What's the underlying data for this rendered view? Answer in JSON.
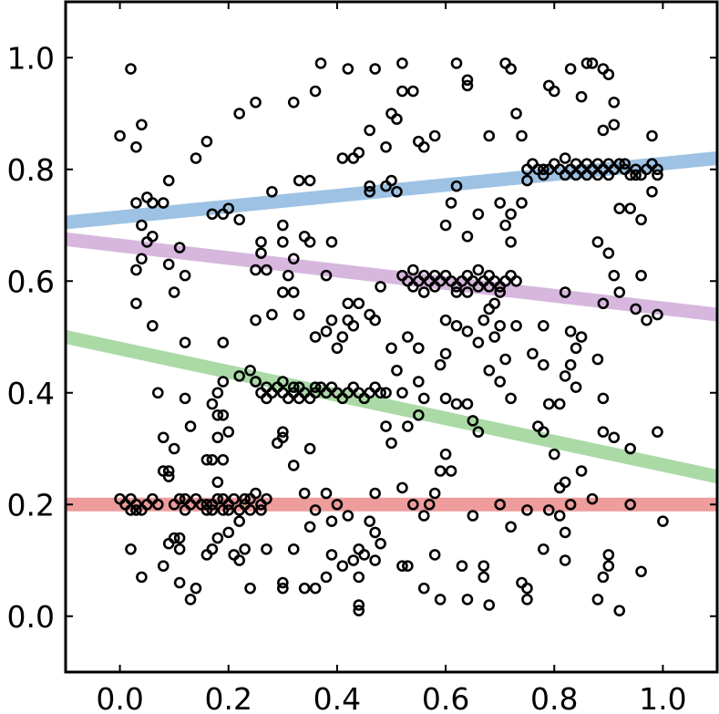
{
  "chart_data": {
    "type": "scatter",
    "title": "",
    "xlabel": "",
    "ylabel": "",
    "xlim": [
      -0.1,
      1.1
    ],
    "ylim": [
      -0.1,
      1.1
    ],
    "xticks": [
      "0.0",
      "0.2",
      "0.4",
      "0.6",
      "0.8",
      "1.0"
    ],
    "yticks": [
      "0.0",
      "0.2",
      "0.4",
      "0.6",
      "0.8",
      "1.0"
    ],
    "grid": false,
    "legend": "none",
    "fit_lines": [
      {
        "color": "#4f8fcc",
        "x": [
          -0.1,
          1.1
        ],
        "y": [
          0.705,
          0.82
        ]
      },
      {
        "color": "#b77cc2",
        "x": [
          -0.1,
          1.1
        ],
        "y": [
          0.675,
          0.54
        ]
      },
      {
        "color": "#66bb5f",
        "x": [
          -0.1,
          1.1
        ],
        "y": [
          0.5,
          0.25
        ]
      },
      {
        "color": "#e04a4a",
        "x": [
          -0.1,
          1.1
        ],
        "y": [
          0.2,
          0.2
        ]
      }
    ],
    "points": [
      [
        0.02,
        0.98
      ],
      [
        0.0,
        0.86
      ],
      [
        0.03,
        0.84
      ],
      [
        0.04,
        0.88
      ],
      [
        0.03,
        0.74
      ],
      [
        0.05,
        0.75
      ],
      [
        0.06,
        0.74
      ],
      [
        0.04,
        0.7
      ],
      [
        0.05,
        0.67
      ],
      [
        0.06,
        0.68
      ],
      [
        0.04,
        0.64
      ],
      [
        0.03,
        0.62
      ],
      [
        0.03,
        0.56
      ],
      [
        0.06,
        0.52
      ],
      [
        0.09,
        0.78
      ],
      [
        0.08,
        0.74
      ],
      [
        0.09,
        0.63
      ],
      [
        0.1,
        0.58
      ],
      [
        0.11,
        0.66
      ],
      [
        0.12,
        0.61
      ],
      [
        0.12,
        0.49
      ],
      [
        0.14,
        0.82
      ],
      [
        0.16,
        0.85
      ],
      [
        0.17,
        0.72
      ],
      [
        0.19,
        0.72
      ],
      [
        0.2,
        0.73
      ],
      [
        0.22,
        0.71
      ],
      [
        0.22,
        0.9
      ],
      [
        0.25,
        0.92
      ],
      [
        0.26,
        0.67
      ],
      [
        0.26,
        0.65
      ],
      [
        0.25,
        0.62
      ],
      [
        0.27,
        0.62
      ],
      [
        0.28,
        0.76
      ],
      [
        0.3,
        0.67
      ],
      [
        0.3,
        0.7
      ],
      [
        0.32,
        0.92
      ],
      [
        0.33,
        0.78
      ],
      [
        0.35,
        0.78
      ],
      [
        0.36,
        0.94
      ],
      [
        0.37,
        0.99
      ],
      [
        0.34,
        0.68
      ],
      [
        0.35,
        0.67
      ],
      [
        0.32,
        0.64
      ],
      [
        0.38,
        0.61
      ],
      [
        0.39,
        0.67
      ],
      [
        0.41,
        0.82
      ],
      [
        0.42,
        0.98
      ],
      [
        0.43,
        0.82
      ],
      [
        0.44,
        0.83
      ],
      [
        0.46,
        0.87
      ],
      [
        0.47,
        0.98
      ],
      [
        0.49,
        0.84
      ],
      [
        0.46,
        0.77
      ],
      [
        0.46,
        0.76
      ],
      [
        0.49,
        0.77
      ],
      [
        0.5,
        0.78
      ],
      [
        0.51,
        0.76
      ],
      [
        0.5,
        0.9
      ],
      [
        0.51,
        0.89
      ],
      [
        0.52,
        0.99
      ],
      [
        0.52,
        0.94
      ],
      [
        0.54,
        0.94
      ],
      [
        0.55,
        0.85
      ],
      [
        0.56,
        0.84
      ],
      [
        0.58,
        0.86
      ],
      [
        0.62,
        0.99
      ],
      [
        0.64,
        0.96
      ],
      [
        0.64,
        0.95
      ],
      [
        0.62,
        0.77
      ],
      [
        0.61,
        0.74
      ],
      [
        0.6,
        0.7
      ],
      [
        0.64,
        0.68
      ],
      [
        0.66,
        0.72
      ],
      [
        0.68,
        0.86
      ],
      [
        0.7,
        0.74
      ],
      [
        0.71,
        0.7
      ],
      [
        0.72,
        0.72
      ],
      [
        0.72,
        0.67
      ],
      [
        0.71,
        0.99
      ],
      [
        0.72,
        0.98
      ],
      [
        0.73,
        0.9
      ],
      [
        0.74,
        0.86
      ],
      [
        0.75,
        0.78
      ],
      [
        0.74,
        0.74
      ],
      [
        0.78,
        0.8
      ],
      [
        0.79,
        0.95
      ],
      [
        0.8,
        0.94
      ],
      [
        0.83,
        0.98
      ],
      [
        0.85,
        0.93
      ],
      [
        0.86,
        0.99
      ],
      [
        0.87,
        0.99
      ],
      [
        0.89,
        0.98
      ],
      [
        0.9,
        0.97
      ],
      [
        0.91,
        0.92
      ],
      [
        0.89,
        0.87
      ],
      [
        0.91,
        0.88
      ],
      [
        0.93,
        0.81
      ],
      [
        0.95,
        0.79
      ],
      [
        0.98,
        0.86
      ],
      [
        0.99,
        0.79
      ],
      [
        0.98,
        0.76
      ],
      [
        0.96,
        0.71
      ],
      [
        0.94,
        0.73
      ],
      [
        0.92,
        0.73
      ],
      [
        0.88,
        0.67
      ],
      [
        0.91,
        0.61
      ],
      [
        0.9,
        0.65
      ],
      [
        0.92,
        0.58
      ],
      [
        0.95,
        0.55
      ],
      [
        0.96,
        0.61
      ],
      [
        0.99,
        0.54
      ],
      [
        0.97,
        0.53
      ],
      [
        0.89,
        0.56
      ],
      [
        0.85,
        0.5
      ],
      [
        0.83,
        0.51
      ],
      [
        0.82,
        0.58
      ],
      [
        0.83,
        0.45
      ],
      [
        0.84,
        0.48
      ],
      [
        0.88,
        0.46
      ],
      [
        0.89,
        0.39
      ],
      [
        0.89,
        0.33
      ],
      [
        0.91,
        0.32
      ],
      [
        0.94,
        0.3
      ],
      [
        0.99,
        0.33
      ],
      [
        0.85,
        0.26
      ],
      [
        0.82,
        0.24
      ],
      [
        0.81,
        0.23
      ],
      [
        0.8,
        0.29
      ],
      [
        0.77,
        0.34
      ],
      [
        0.78,
        0.33
      ],
      [
        0.79,
        0.38
      ],
      [
        0.81,
        0.38
      ],
      [
        0.82,
        0.43
      ],
      [
        0.84,
        0.41
      ],
      [
        0.78,
        0.45
      ],
      [
        0.78,
        0.52
      ],
      [
        0.76,
        0.47
      ],
      [
        0.73,
        0.52
      ],
      [
        0.72,
        0.39
      ],
      [
        0.71,
        0.46
      ],
      [
        0.7,
        0.42
      ],
      [
        0.7,
        0.52
      ],
      [
        0.69,
        0.56
      ],
      [
        0.68,
        0.55
      ],
      [
        0.67,
        0.53
      ],
      [
        0.66,
        0.49
      ],
      [
        0.64,
        0.51
      ],
      [
        0.62,
        0.52
      ],
      [
        0.6,
        0.53
      ],
      [
        0.59,
        0.45
      ],
      [
        0.6,
        0.47
      ],
      [
        0.6,
        0.39
      ],
      [
        0.62,
        0.38
      ],
      [
        0.64,
        0.38
      ],
      [
        0.65,
        0.35
      ],
      [
        0.66,
        0.33
      ],
      [
        0.68,
        0.44
      ],
      [
        0.69,
        0.5
      ],
      [
        0.61,
        0.26
      ],
      [
        0.6,
        0.29
      ],
      [
        0.59,
        0.26
      ],
      [
        0.58,
        0.22
      ],
      [
        0.57,
        0.2
      ],
      [
        0.56,
        0.18
      ],
      [
        0.54,
        0.2
      ],
      [
        0.52,
        0.23
      ],
      [
        0.5,
        0.31
      ],
      [
        0.49,
        0.34
      ],
      [
        0.5,
        0.48
      ],
      [
        0.51,
        0.44
      ],
      [
        0.52,
        0.4
      ],
      [
        0.53,
        0.5
      ],
      [
        0.55,
        0.48
      ],
      [
        0.55,
        0.42
      ],
      [
        0.56,
        0.39
      ],
      [
        0.55,
        0.36
      ],
      [
        0.53,
        0.34
      ],
      [
        0.47,
        0.22
      ],
      [
        0.46,
        0.17
      ],
      [
        0.47,
        0.15
      ],
      [
        0.48,
        0.13
      ],
      [
        0.47,
        0.1
      ],
      [
        0.45,
        0.11
      ],
      [
        0.44,
        0.12
      ],
      [
        0.43,
        0.1
      ],
      [
        0.44,
        0.07
      ],
      [
        0.42,
        0.18
      ],
      [
        0.4,
        0.2
      ],
      [
        0.39,
        0.17
      ],
      [
        0.38,
        0.22
      ],
      [
        0.36,
        0.19
      ],
      [
        0.35,
        0.16
      ],
      [
        0.34,
        0.22
      ],
      [
        0.32,
        0.27
      ],
      [
        0.3,
        0.32
      ],
      [
        0.29,
        0.31
      ],
      [
        0.3,
        0.33
      ],
      [
        0.35,
        0.3
      ],
      [
        0.36,
        0.5
      ],
      [
        0.38,
        0.51
      ],
      [
        0.39,
        0.53
      ],
      [
        0.42,
        0.53
      ],
      [
        0.44,
        0.56
      ],
      [
        0.46,
        0.54
      ],
      [
        0.47,
        0.53
      ],
      [
        0.48,
        0.59
      ],
      [
        0.43,
        0.52
      ],
      [
        0.42,
        0.56
      ],
      [
        0.41,
        0.5
      ],
      [
        0.4,
        0.48
      ],
      [
        0.33,
        0.54
      ],
      [
        0.32,
        0.58
      ],
      [
        0.31,
        0.61
      ],
      [
        0.3,
        0.58
      ],
      [
        0.28,
        0.54
      ],
      [
        0.25,
        0.53
      ],
      [
        0.24,
        0.44
      ],
      [
        0.25,
        0.42
      ],
      [
        0.22,
        0.43
      ],
      [
        0.19,
        0.49
      ],
      [
        0.19,
        0.42
      ],
      [
        0.18,
        0.4
      ],
      [
        0.17,
        0.38
      ],
      [
        0.18,
        0.36
      ],
      [
        0.19,
        0.36
      ],
      [
        0.18,
        0.32
      ],
      [
        0.2,
        0.33
      ],
      [
        0.19,
        0.28
      ],
      [
        0.17,
        0.28
      ],
      [
        0.16,
        0.28
      ],
      [
        0.18,
        0.24
      ],
      [
        0.19,
        0.21
      ],
      [
        0.13,
        0.34
      ],
      [
        0.12,
        0.39
      ],
      [
        0.1,
        0.3
      ],
      [
        0.08,
        0.32
      ],
      [
        0.07,
        0.4
      ],
      [
        0.08,
        0.26
      ],
      [
        0.09,
        0.26
      ],
      [
        0.09,
        0.25
      ],
      [
        0.02,
        0.12
      ],
      [
        0.04,
        0.07
      ],
      [
        0.08,
        0.09
      ],
      [
        0.09,
        0.13
      ],
      [
        0.1,
        0.14
      ],
      [
        0.11,
        0.14
      ],
      [
        0.11,
        0.12
      ],
      [
        0.11,
        0.06
      ],
      [
        0.13,
        0.03
      ],
      [
        0.14,
        0.05
      ],
      [
        0.16,
        0.11
      ],
      [
        0.17,
        0.12
      ],
      [
        0.18,
        0.14
      ],
      [
        0.17,
        0.19
      ],
      [
        0.2,
        0.15
      ],
      [
        0.21,
        0.11
      ],
      [
        0.22,
        0.1
      ],
      [
        0.23,
        0.12
      ],
      [
        0.24,
        0.05
      ],
      [
        0.22,
        0.17
      ],
      [
        0.23,
        0.21
      ],
      [
        0.25,
        0.22
      ],
      [
        0.27,
        0.21
      ],
      [
        0.26,
        0.19
      ],
      [
        0.27,
        0.12
      ],
      [
        0.3,
        0.06
      ],
      [
        0.3,
        0.05
      ],
      [
        0.32,
        0.12
      ],
      [
        0.34,
        0.05
      ],
      [
        0.36,
        0.05
      ],
      [
        0.38,
        0.07
      ],
      [
        0.39,
        0.11
      ],
      [
        0.41,
        0.09
      ],
      [
        0.44,
        0.01
      ],
      [
        0.44,
        0.02
      ],
      [
        0.52,
        0.09
      ],
      [
        0.53,
        0.09
      ],
      [
        0.56,
        0.05
      ],
      [
        0.58,
        0.11
      ],
      [
        0.59,
        0.03
      ],
      [
        0.63,
        0.09
      ],
      [
        0.64,
        0.03
      ],
      [
        0.67,
        0.07
      ],
      [
        0.67,
        0.09
      ],
      [
        0.68,
        0.02
      ],
      [
        0.72,
        0.16
      ],
      [
        0.74,
        0.06
      ],
      [
        0.75,
        0.05
      ],
      [
        0.75,
        0.03
      ],
      [
        0.78,
        0.12
      ],
      [
        0.81,
        0.18
      ],
      [
        0.82,
        0.15
      ],
      [
        0.82,
        0.1
      ],
      [
        0.88,
        0.03
      ],
      [
        0.89,
        0.07
      ],
      [
        0.9,
        0.09
      ],
      [
        0.9,
        0.11
      ],
      [
        0.92,
        0.01
      ],
      [
        0.96,
        0.08
      ],
      [
        1.0,
        0.17
      ],
      [
        0.94,
        0.2
      ],
      [
        0.87,
        0.21
      ],
      [
        0.83,
        0.2
      ],
      [
        0.79,
        0.19
      ],
      [
        0.75,
        0.19
      ],
      [
        0.7,
        0.2
      ],
      [
        0.65,
        0.18
      ],
      [
        0.02,
        0.21
      ],
      [
        0.03,
        0.2
      ],
      [
        0.04,
        0.19
      ],
      [
        0.05,
        0.2
      ],
      [
        0.06,
        0.21
      ],
      [
        0.07,
        0.2
      ],
      [
        0.02,
        0.19
      ],
      [
        0.0,
        0.21
      ],
      [
        0.01,
        0.2
      ],
      [
        0.03,
        0.19
      ],
      [
        0.1,
        0.2
      ],
      [
        0.11,
        0.21
      ],
      [
        0.12,
        0.19
      ],
      [
        0.13,
        0.2
      ],
      [
        0.14,
        0.21
      ],
      [
        0.15,
        0.2
      ],
      [
        0.16,
        0.19
      ],
      [
        0.17,
        0.2
      ],
      [
        0.18,
        0.21
      ],
      [
        0.19,
        0.19
      ],
      [
        0.2,
        0.2
      ],
      [
        0.21,
        0.21
      ],
      [
        0.22,
        0.19
      ],
      [
        0.23,
        0.2
      ],
      [
        0.24,
        0.21
      ],
      [
        0.26,
        0.2
      ],
      [
        0.12,
        0.21
      ],
      [
        0.16,
        0.2
      ],
      [
        0.2,
        0.19
      ],
      [
        0.24,
        0.19
      ],
      [
        0.25,
        0.42
      ],
      [
        0.26,
        0.4
      ],
      [
        0.27,
        0.41
      ],
      [
        0.28,
        0.4
      ],
      [
        0.29,
        0.41
      ],
      [
        0.3,
        0.4
      ],
      [
        0.31,
        0.39
      ],
      [
        0.32,
        0.4
      ],
      [
        0.33,
        0.41
      ],
      [
        0.34,
        0.4
      ],
      [
        0.35,
        0.39
      ],
      [
        0.36,
        0.4
      ],
      [
        0.37,
        0.41
      ],
      [
        0.38,
        0.4
      ],
      [
        0.39,
        0.41
      ],
      [
        0.4,
        0.4
      ],
      [
        0.41,
        0.39
      ],
      [
        0.42,
        0.4
      ],
      [
        0.43,
        0.41
      ],
      [
        0.44,
        0.4
      ],
      [
        0.45,
        0.39
      ],
      [
        0.46,
        0.4
      ],
      [
        0.47,
        0.41
      ],
      [
        0.48,
        0.4
      ],
      [
        0.49,
        0.4
      ],
      [
        0.3,
        0.42
      ],
      [
        0.32,
        0.41
      ],
      [
        0.27,
        0.39
      ],
      [
        0.33,
        0.39
      ],
      [
        0.36,
        0.41
      ],
      [
        0.52,
        0.61
      ],
      [
        0.53,
        0.6
      ],
      [
        0.54,
        0.59
      ],
      [
        0.55,
        0.6
      ],
      [
        0.56,
        0.61
      ],
      [
        0.57,
        0.6
      ],
      [
        0.58,
        0.59
      ],
      [
        0.59,
        0.6
      ],
      [
        0.6,
        0.61
      ],
      [
        0.61,
        0.6
      ],
      [
        0.62,
        0.59
      ],
      [
        0.63,
        0.6
      ],
      [
        0.64,
        0.61
      ],
      [
        0.65,
        0.6
      ],
      [
        0.66,
        0.59
      ],
      [
        0.67,
        0.6
      ],
      [
        0.68,
        0.61
      ],
      [
        0.69,
        0.6
      ],
      [
        0.7,
        0.59
      ],
      [
        0.71,
        0.6
      ],
      [
        0.72,
        0.61
      ],
      [
        0.73,
        0.6
      ],
      [
        0.54,
        0.62
      ],
      [
        0.58,
        0.61
      ],
      [
        0.62,
        0.58
      ],
      [
        0.66,
        0.62
      ],
      [
        0.7,
        0.58
      ],
      [
        0.56,
        0.58
      ],
      [
        0.64,
        0.58
      ],
      [
        0.68,
        0.59
      ],
      [
        0.75,
        0.8
      ],
      [
        0.76,
        0.81
      ],
      [
        0.77,
        0.8
      ],
      [
        0.78,
        0.79
      ],
      [
        0.79,
        0.8
      ],
      [
        0.8,
        0.81
      ],
      [
        0.81,
        0.8
      ],
      [
        0.82,
        0.79
      ],
      [
        0.83,
        0.8
      ],
      [
        0.84,
        0.81
      ],
      [
        0.85,
        0.8
      ],
      [
        0.86,
        0.79
      ],
      [
        0.87,
        0.8
      ],
      [
        0.88,
        0.81
      ],
      [
        0.89,
        0.8
      ],
      [
        0.9,
        0.79
      ],
      [
        0.91,
        0.8
      ],
      [
        0.92,
        0.81
      ],
      [
        0.93,
        0.8
      ],
      [
        0.94,
        0.79
      ],
      [
        0.95,
        0.8
      ],
      [
        0.96,
        0.79
      ],
      [
        0.97,
        0.8
      ],
      [
        0.98,
        0.81
      ],
      [
        0.99,
        0.8
      ],
      [
        0.82,
        0.82
      ],
      [
        0.86,
        0.81
      ],
      [
        0.88,
        0.79
      ],
      [
        0.84,
        0.79
      ],
      [
        0.9,
        0.81
      ]
    ]
  }
}
